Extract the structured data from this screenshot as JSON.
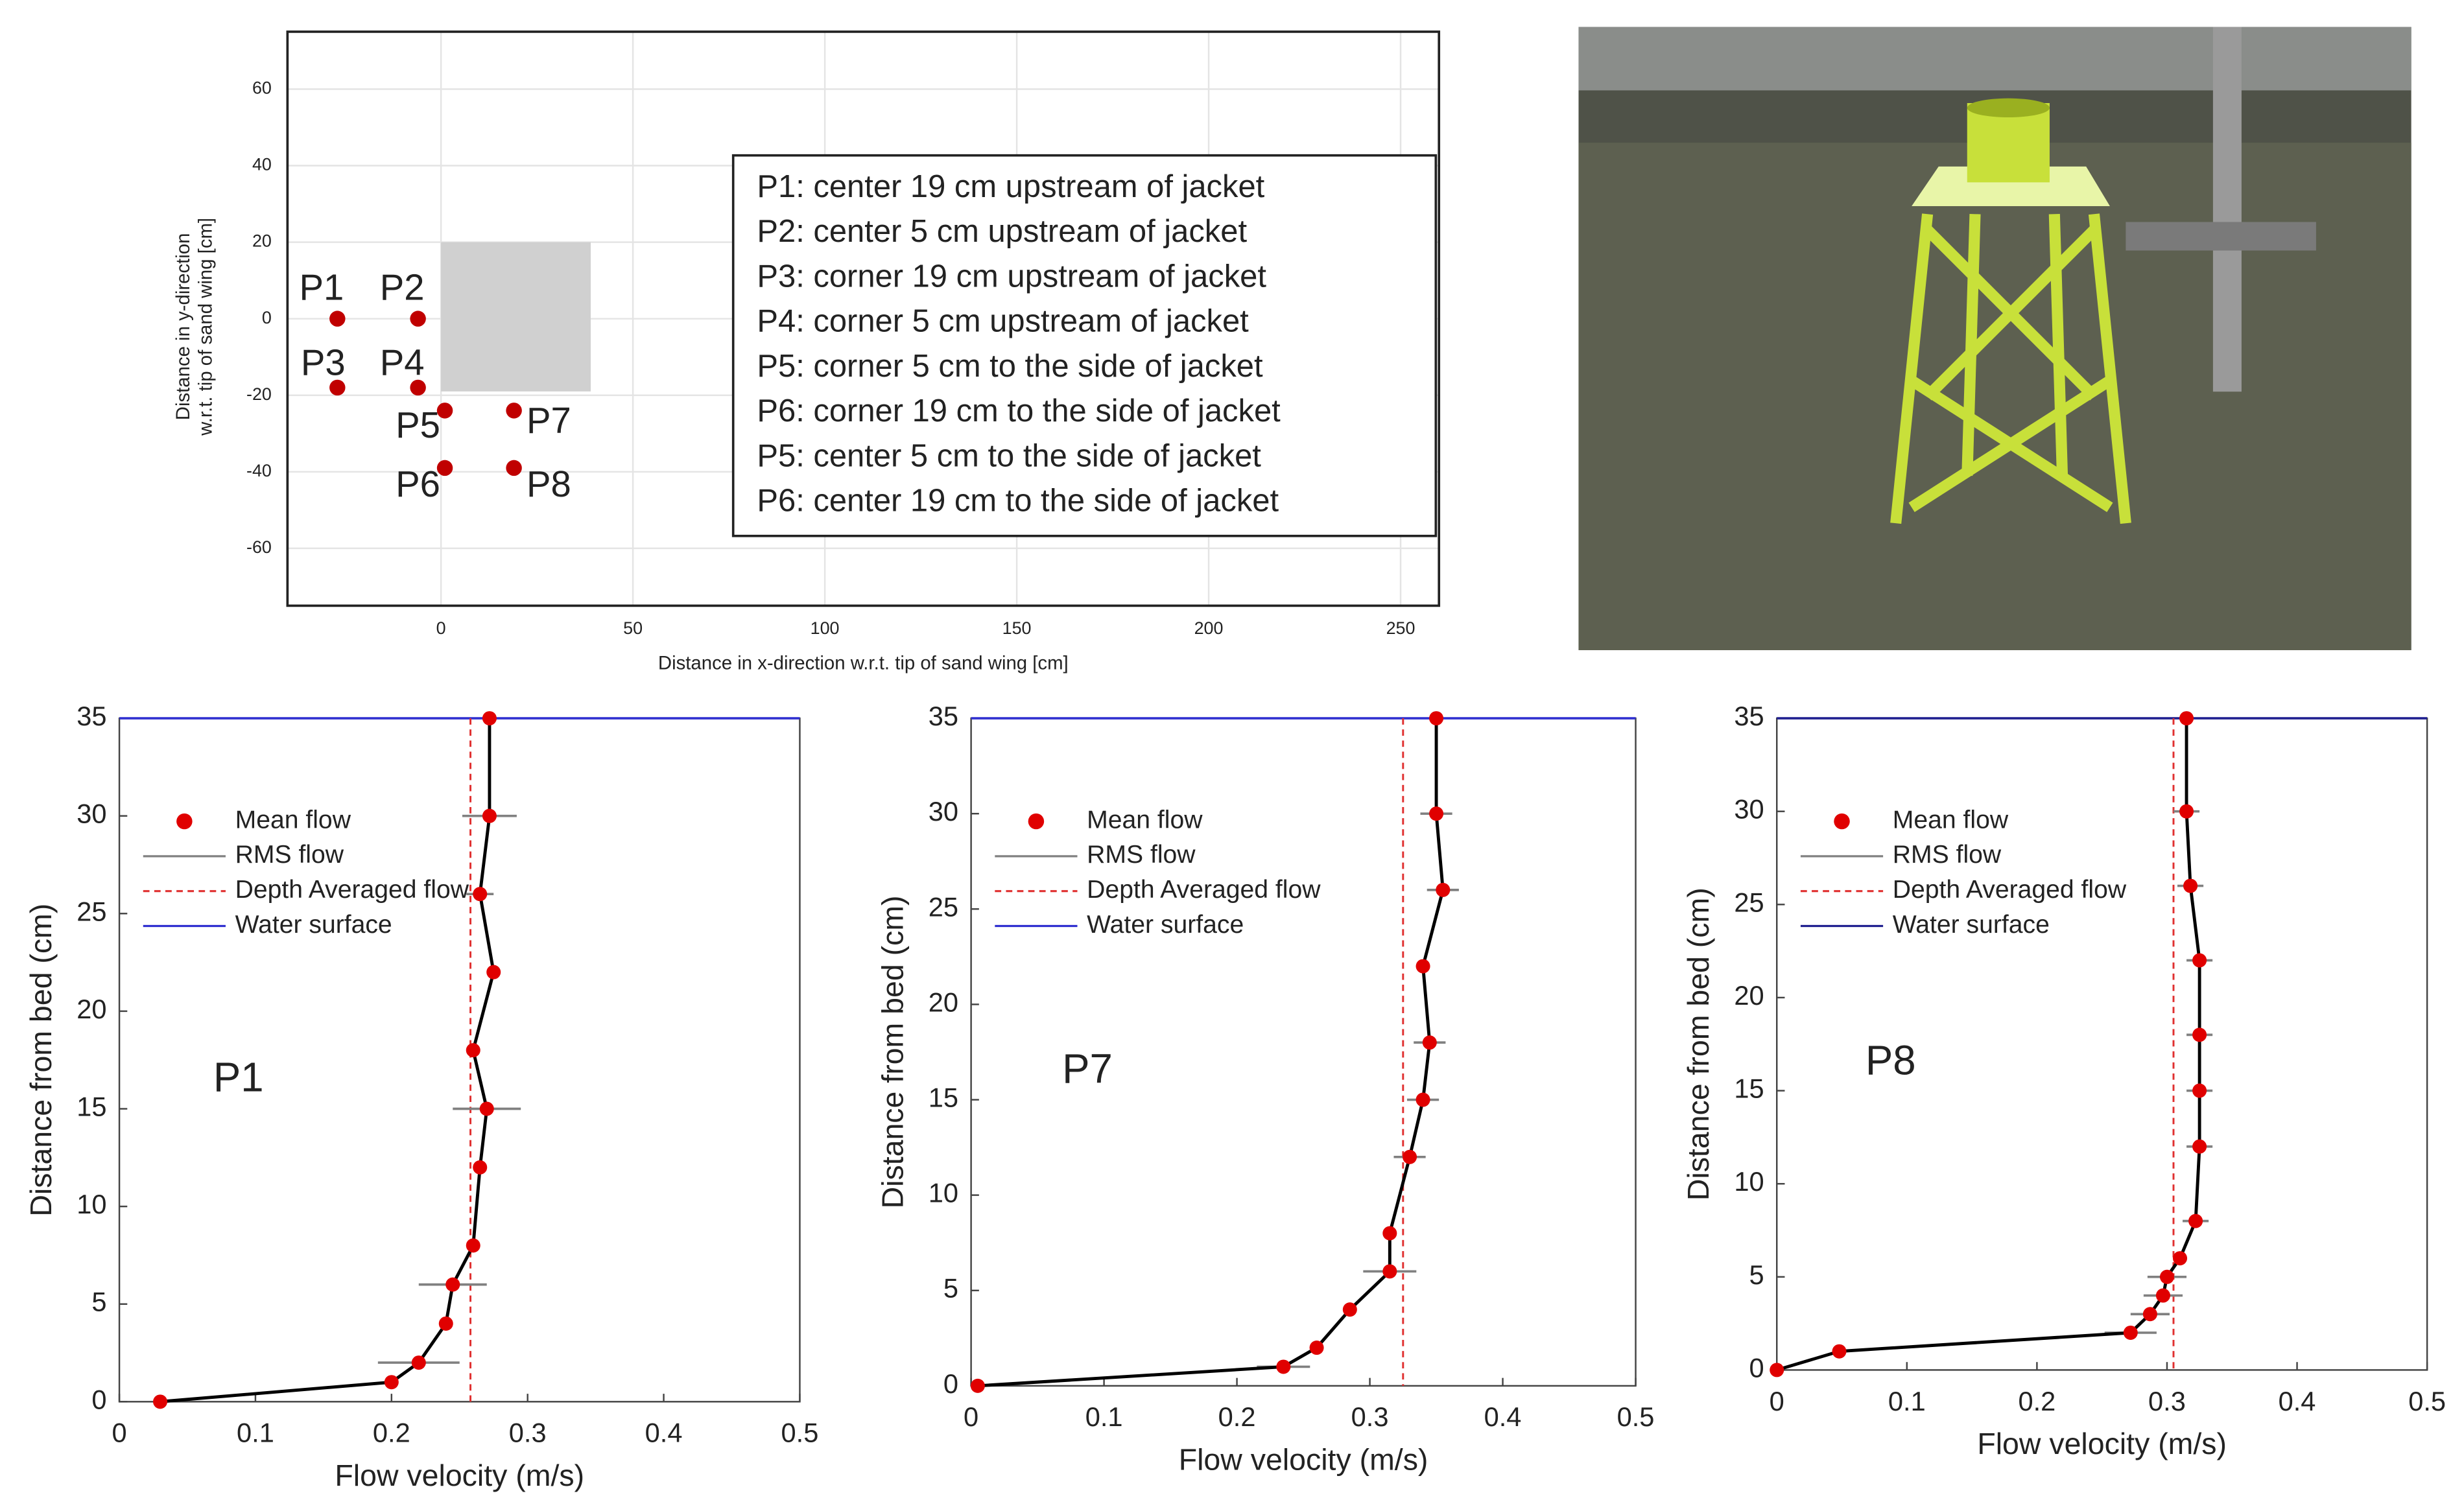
{
  "chart_data": [
    {
      "type": "scatter",
      "xlabel": "Distance in x-direction w.r.t. tip of sand wing [cm]",
      "ylabel": [
        "Distance in y-direction",
        "w.r.t. tip of sand wing [cm]"
      ],
      "xlim": [
        -40,
        260
      ],
      "ylim": [
        -75,
        75
      ],
      "xticks": [
        0,
        50,
        100,
        150,
        200,
        250
      ],
      "yticks": [
        -60,
        -40,
        -20,
        0,
        20,
        40,
        60
      ],
      "grid": true,
      "labels": [
        "P1",
        "P2",
        "P3",
        "P4",
        "P5",
        "P7",
        "P6",
        "P8"
      ],
      "x": [
        -27,
        -6,
        -27,
        -6,
        1,
        19,
        1,
        19
      ],
      "y": [
        0,
        0,
        -18,
        -18,
        -24,
        -24,
        -39,
        -39
      ],
      "color": "#c00000",
      "jacket": {
        "x": [
          0,
          39
        ],
        "y": [
          -19,
          20
        ],
        "color": "#d0d0d0"
      },
      "legend_box": [
        "P1: center 19 cm upstream of jacket",
        "P2: center 5 cm upstream of jacket",
        "P3: corner 19 cm upstream of jacket",
        "P4: corner 5 cm upstream of jacket",
        "P5: corner 5 cm to the side of jacket",
        "P6: corner 19 cm to the side of jacket",
        "P5: center 5 cm to the side of jacket",
        "P6: center 19 cm to the side of jacket"
      ]
    },
    {
      "type": "profile",
      "annotation": "P1",
      "xlabel": "Flow velocity (m/s)",
      "ylabel": "Distance from bed (cm)",
      "xlim": [
        0,
        0.5
      ],
      "ylim": [
        0,
        35
      ],
      "xticks": [
        0,
        0.1,
        0.2,
        0.3,
        0.4,
        0.5
      ],
      "yticks": [
        0,
        5,
        10,
        15,
        20,
        25,
        30,
        35
      ],
      "line_color": "#000000",
      "y": [
        0,
        1,
        2,
        4,
        6,
        8,
        12,
        15,
        18,
        22,
        26,
        30,
        35
      ],
      "series": [
        {
          "name": "Mean flow",
          "color": "#e00000",
          "values": [
            0.03,
            0.2,
            0.22,
            0.24,
            0.245,
            0.26,
            0.265,
            0.27,
            0.26,
            0.275,
            0.265,
            0.272,
            0.272
          ]
        },
        {
          "name": "RMS flow",
          "color": "#808080",
          "values": [
            0.003,
            0.005,
            0.03,
            0.005,
            0.025,
            0.005,
            0.005,
            0.025,
            0.005,
            0.005,
            0.01,
            0.02,
            0.005
          ]
        },
        {
          "name": "Depth Averaged flow",
          "color": "#e03030",
          "values": [
            0.258
          ]
        },
        {
          "name": "Water surface",
          "color": "#3030d0",
          "values": [
            35
          ]
        }
      ]
    },
    {
      "type": "profile",
      "annotation": "P7",
      "xlabel": "Flow velocity (m/s)",
      "ylabel": "Distance from bed (cm)",
      "xlim": [
        0,
        0.5
      ],
      "ylim": [
        0,
        35
      ],
      "xticks": [
        0,
        0.1,
        0.2,
        0.3,
        0.4,
        0.5
      ],
      "yticks": [
        0,
        5,
        10,
        15,
        20,
        25,
        30,
        35
      ],
      "line_color": "#000000",
      "y": [
        0,
        1,
        2,
        4,
        6,
        8,
        12,
        15,
        18,
        22,
        26,
        30,
        35
      ],
      "series": [
        {
          "name": "Mean flow",
          "color": "#e00000",
          "values": [
            0.005,
            0.235,
            0.26,
            0.285,
            0.315,
            0.315,
            0.33,
            0.34,
            0.345,
            0.34,
            0.355,
            0.35,
            0.35
          ]
        },
        {
          "name": "RMS flow",
          "color": "#808080",
          "values": [
            0.003,
            0.02,
            0.005,
            0.005,
            0.02,
            0.005,
            0.012,
            0.012,
            0.012,
            0.005,
            0.012,
            0.012,
            0.005
          ]
        },
        {
          "name": "Depth Averaged flow",
          "color": "#e03030",
          "values": [
            0.325
          ]
        },
        {
          "name": "Water surface",
          "color": "#3030d0",
          "values": [
            35
          ]
        }
      ]
    },
    {
      "type": "profile",
      "annotation": "P8",
      "xlabel": "Flow velocity (m/s)",
      "ylabel": "Distance from bed (cm)",
      "xlim": [
        0,
        0.5
      ],
      "ylim": [
        0,
        35
      ],
      "xticks": [
        0,
        0.1,
        0.2,
        0.3,
        0.4,
        0.5
      ],
      "yticks": [
        0,
        5,
        10,
        15,
        20,
        25,
        30,
        35
      ],
      "line_color": "#000000",
      "y": [
        0,
        1,
        2,
        3,
        4,
        5,
        6,
        8,
        12,
        15,
        18,
        22,
        26,
        30,
        35
      ],
      "series": [
        {
          "name": "Mean flow",
          "color": "#e00000",
          "values": [
            0,
            0.048,
            0.272,
            0.287,
            0.297,
            0.3,
            0.31,
            0.322,
            0.325,
            0.325,
            0.325,
            0.325,
            0.318,
            0.315,
            0.315
          ]
        },
        {
          "name": "RMS flow",
          "color": "#808080",
          "values": [
            0.003,
            0.005,
            0.02,
            0.015,
            0.015,
            0.015,
            0.005,
            0.01,
            0.01,
            0.01,
            0.01,
            0.01,
            0.01,
            0.01,
            0.005
          ]
        },
        {
          "name": "Depth Averaged flow",
          "color": "#e03030",
          "values": [
            0.305
          ]
        },
        {
          "name": "Water surface",
          "color": "#202090",
          "values": [
            35
          ]
        }
      ]
    }
  ]
}
